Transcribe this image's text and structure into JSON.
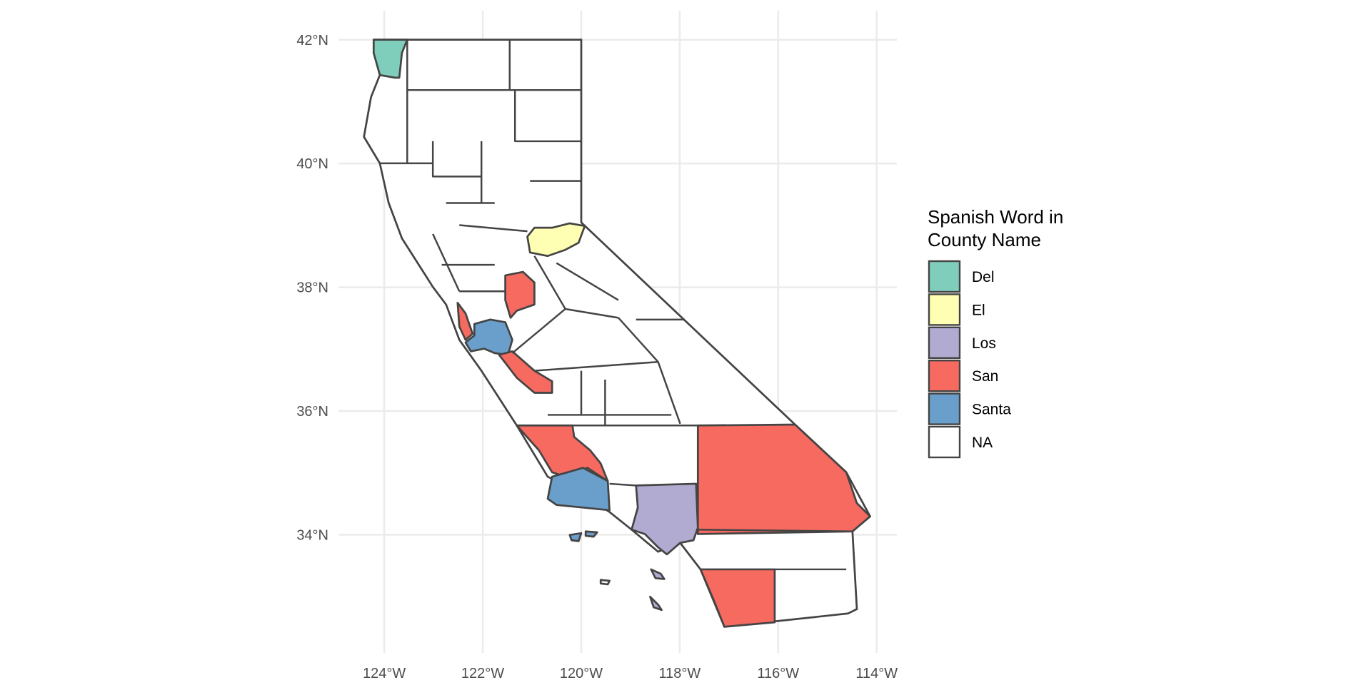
{
  "map": {
    "xlim": [
      -124.93,
      -113.59
    ],
    "ylim": [
      32.09,
      42.47
    ],
    "xticks": [
      {
        "value": -124,
        "label": "124°W"
      },
      {
        "value": -122,
        "label": "122°W"
      },
      {
        "value": -120,
        "label": "120°W"
      },
      {
        "value": -118,
        "label": "118°W"
      },
      {
        "value": -116,
        "label": "116°W"
      },
      {
        "value": -114,
        "label": "114°W"
      }
    ],
    "yticks": [
      {
        "value": 34,
        "label": "34°N"
      },
      {
        "value": 36,
        "label": "36°N"
      },
      {
        "value": 38,
        "label": "38°N"
      },
      {
        "value": 40,
        "label": "40°N"
      },
      {
        "value": 42,
        "label": "42°N"
      }
    ],
    "grid": true,
    "legend": {
      "title": "Spanish Word in\nCounty Name",
      "items": [
        {
          "name": "Del",
          "color": "#7fcdbb"
        },
        {
          "name": "El",
          "color": "#ffffb3"
        },
        {
          "name": "Los",
          "color": "#b1aad1"
        },
        {
          "name": "San",
          "color": "#f66a60"
        },
        {
          "name": "Santa",
          "color": "#6a9fcb"
        },
        {
          "name": "NA",
          "color": "#ffffff"
        }
      ]
    }
  }
}
